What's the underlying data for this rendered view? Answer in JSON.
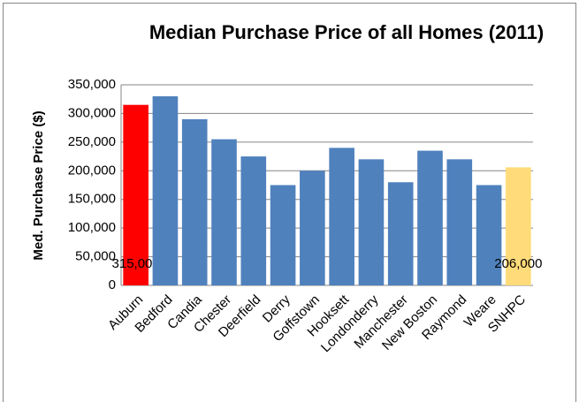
{
  "chart_data": {
    "type": "bar",
    "title": "Median Purchase Price of all Homes (2011)",
    "y_label": "Med. Purchase Price ($)",
    "categories": [
      "Auburn",
      "Bedford",
      "Candia",
      "Chester",
      "Deerfield",
      "Derry",
      "Goffstown",
      "Hooksett",
      "Londonderry",
      "Manchester",
      "New Boston",
      "Raymond",
      "Weare",
      "SNHPC"
    ],
    "values": [
      315000,
      330000,
      290000,
      255000,
      225000,
      175000,
      200000,
      240000,
      220000,
      180000,
      235000,
      220000,
      175000,
      206000
    ],
    "value_labels": [
      "315,000",
      null,
      null,
      null,
      null,
      null,
      null,
      null,
      null,
      null,
      null,
      null,
      null,
      "206,000"
    ],
    "colors": [
      "#ff0000",
      "#4f81bd",
      "#4f81bd",
      "#4f81bd",
      "#4f81bd",
      "#4f81bd",
      "#4f81bd",
      "#4f81bd",
      "#4f81bd",
      "#4f81bd",
      "#4f81bd",
      "#4f81bd",
      "#4f81bd",
      "#ffdb79"
    ],
    "ylim": [
      0,
      350000
    ],
    "yticks": [
      0,
      {
        "value": 50000,
        "label": "50,000"
      },
      {
        "value": 100000,
        "label": "100,000"
      },
      {
        "value": 150000,
        "label": "150,000"
      },
      {
        "value": 200000,
        "label": "200,000"
      },
      {
        "value": 250000,
        "label": "250,000"
      },
      {
        "value": 300000,
        "label": "300,000"
      },
      {
        "value": 350000,
        "label": "350,000"
      }
    ],
    "grid": true
  }
}
